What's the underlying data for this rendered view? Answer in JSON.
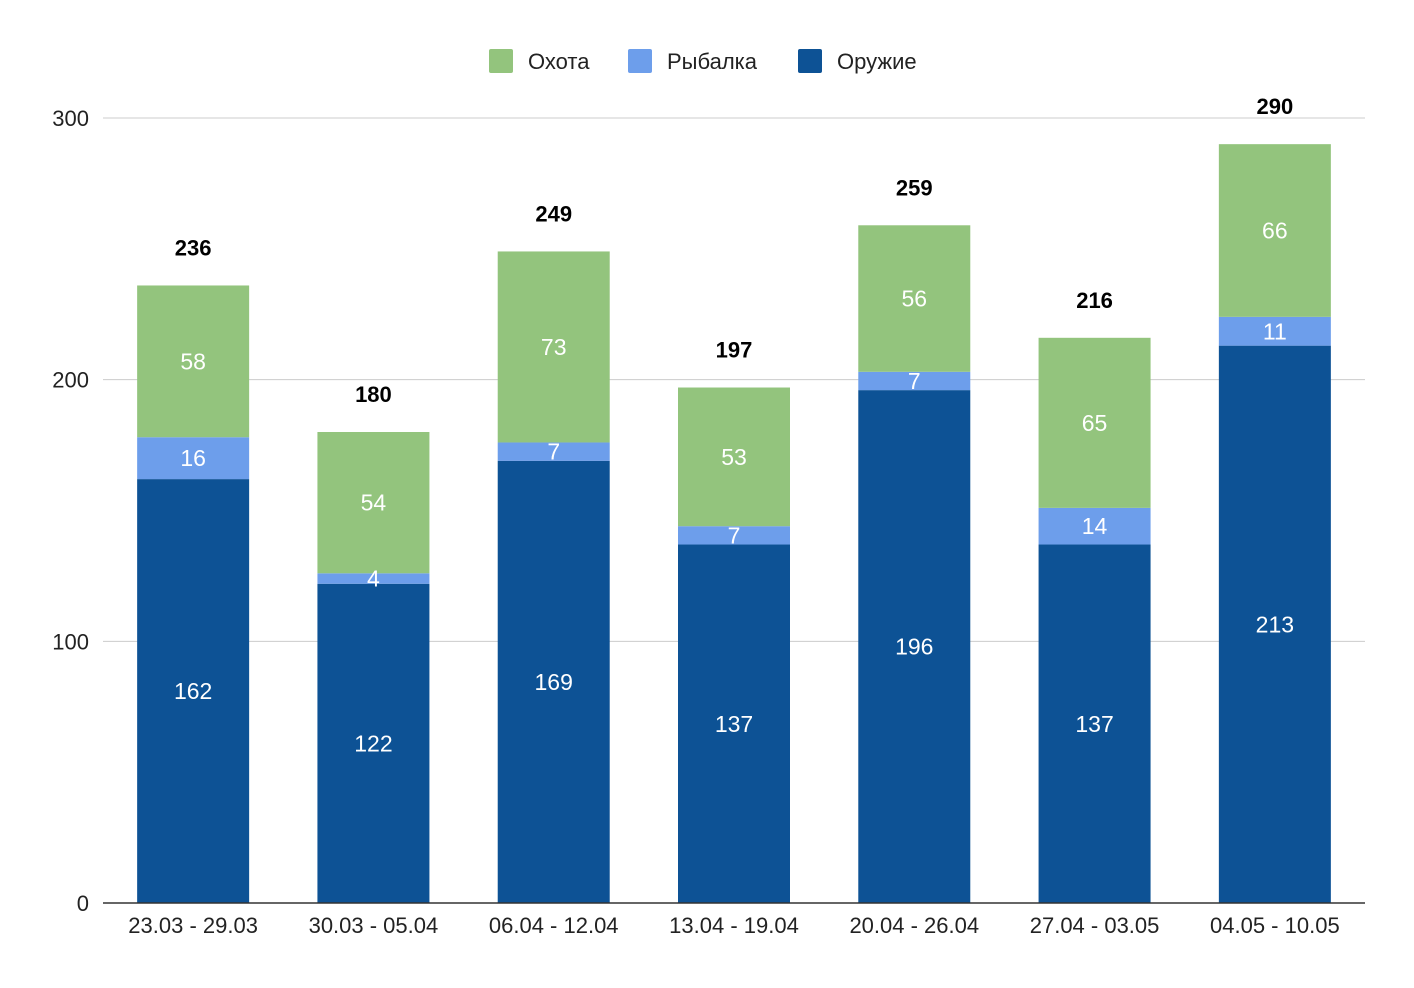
{
  "chart_data": {
    "type": "bar",
    "stacked": true,
    "categories": [
      "23.03 - 29.03",
      "30.03 - 05.04",
      "06.04 - 12.04",
      "13.04 - 19.04",
      "20.04 - 26.04",
      "27.04 - 03.05",
      "04.05 - 10.05"
    ],
    "series": [
      {
        "name": "Оружие",
        "color": "#0d5295",
        "values": [
          162,
          122,
          169,
          137,
          196,
          137,
          213
        ]
      },
      {
        "name": "Рыбалка",
        "color": "#6d9eeb",
        "values": [
          16,
          4,
          7,
          7,
          7,
          14,
          11
        ]
      },
      {
        "name": "Охота",
        "color": "#93c47d",
        "values": [
          58,
          54,
          73,
          53,
          56,
          65,
          66
        ]
      }
    ],
    "totals": [
      236,
      180,
      249,
      197,
      259,
      216,
      290
    ],
    "legend_order": [
      "Охота",
      "Рыбалка",
      "Оружие"
    ],
    "legend_position": "top",
    "ylim": [
      0,
      300
    ],
    "yticks": [
      0,
      100,
      200,
      300
    ],
    "grid": true,
    "title": "",
    "xlabel": "",
    "ylabel": ""
  }
}
